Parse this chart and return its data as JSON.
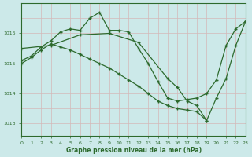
{
  "background_color": "#cce9e9",
  "grid_color": "#d4e8e8",
  "line_color": "#2d6a2d",
  "title": "Graphe pression niveau de la mer (hPa)",
  "xlim": [
    0,
    23
  ],
  "ylim": [
    1012.6,
    1017.0
  ],
  "yticks": [
    1013,
    1014,
    1015,
    1016
  ],
  "xticks": [
    0,
    1,
    2,
    3,
    4,
    5,
    6,
    7,
    8,
    9,
    10,
    11,
    12,
    13,
    14,
    15,
    16,
    17,
    18,
    19,
    20,
    21,
    22,
    23
  ],
  "series1": {
    "x": [
      0,
      1,
      2,
      3,
      4,
      5,
      6,
      7,
      8,
      9,
      10,
      11,
      12,
      13,
      14,
      15,
      16,
      17,
      18,
      19,
      20,
      21,
      22,
      23
    ],
    "y": [
      1015.1,
      1015.25,
      1015.55,
      1015.75,
      1016.05,
      1016.15,
      1016.1,
      1016.5,
      1016.7,
      1016.1,
      1016.1,
      1016.05,
      1015.5,
      1015.0,
      1014.4,
      1013.85,
      1013.75,
      1013.8,
      1013.85,
      1014.0,
      1014.45,
      1015.6,
      1016.15,
      1016.4
    ]
  },
  "series2": {
    "x": [
      0,
      3,
      6,
      9,
      12,
      15,
      16,
      17,
      18,
      19,
      20,
      21,
      22,
      23
    ],
    "y": [
      1015.5,
      1015.6,
      1015.95,
      1016.0,
      1015.7,
      1014.5,
      1014.2,
      1013.75,
      1013.6,
      1013.1,
      1013.85,
      1014.5,
      1015.6,
      1016.4
    ]
  },
  "series3": {
    "x": [
      0,
      1,
      2,
      3,
      4,
      5,
      6,
      7,
      8,
      9,
      10,
      11,
      12,
      13,
      14,
      15,
      16,
      17,
      18,
      19
    ],
    "y": [
      1015.0,
      1015.2,
      1015.45,
      1015.65,
      1015.55,
      1015.45,
      1015.3,
      1015.15,
      1015.0,
      1014.85,
      1014.65,
      1014.45,
      1014.25,
      1014.0,
      1013.75,
      1013.6,
      1013.5,
      1013.45,
      1013.4,
      1013.1
    ]
  }
}
